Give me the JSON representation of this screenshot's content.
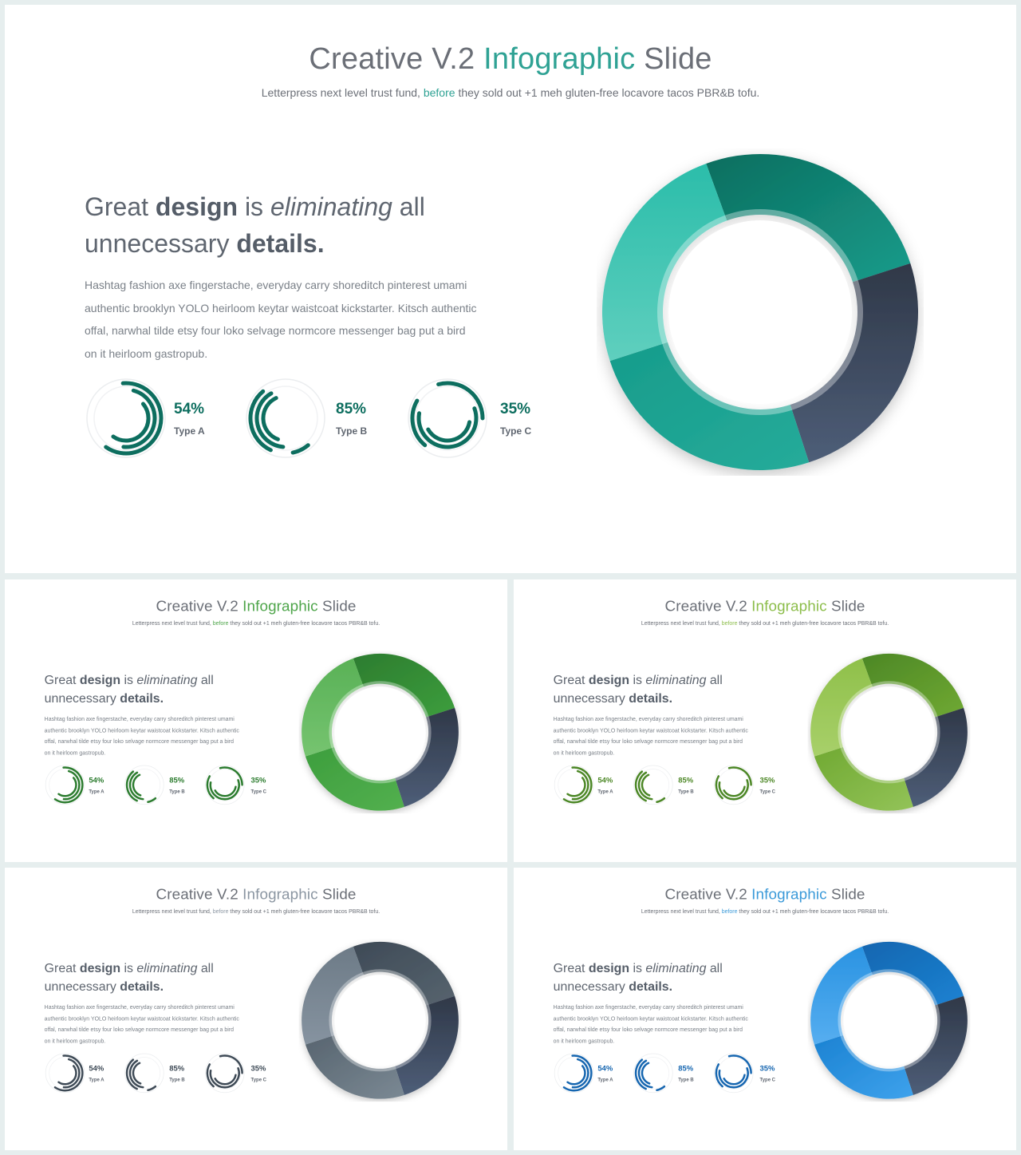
{
  "slide": {
    "title_part1": "Creative V.2",
    "title_accent": "Infographic",
    "title_part3": "Slide",
    "subtitle_part1": "Letterpress next level trust fund,",
    "subtitle_accent": "before",
    "subtitle_part3": "they sold out +1 meh gluten-free locavore tacos PBR&B tofu.",
    "headline": {
      "w1": "Great",
      "w2": "design",
      "w3": "is",
      "w4": "eliminating",
      "w5": "all",
      "w6": "unnecessary",
      "w7": "details",
      "w8": "."
    },
    "body": "Hashtag fashion axe fingerstache, everyday carry shoreditch pinterest umami authentic brooklyn YOLO heirloom keytar waistcoat kickstarter. Kitsch authentic offal, narwhal tilde etsy four loko selvage normcore messenger bag put a bird on it heirloom gastropub.",
    "stats": [
      {
        "value": "54%",
        "label": "Type A",
        "fraction": 0.54
      },
      {
        "value": "85%",
        "label": "Type B",
        "fraction": 0.85
      },
      {
        "value": "35%",
        "label": "Type C",
        "fraction": 0.35
      }
    ]
  },
  "themes": [
    {
      "name": "teal",
      "accent": "#2fa294",
      "dark": "#0d6e5f",
      "mid": "#169c8b",
      "light": "#2bbdaa",
      "pale": "#5fcfbe",
      "bottom": "#26ab9a"
    },
    {
      "name": "green",
      "accent": "#4ea54a",
      "dark": "#2c7c2f",
      "mid": "#3d9e3d",
      "light": "#59b156",
      "pale": "#76c470",
      "bottom": "#53b04f"
    },
    {
      "name": "lime",
      "accent": "#8cbd4a",
      "dark": "#4c8726",
      "mid": "#70a932",
      "light": "#8fc04a",
      "pale": "#a8d06a",
      "bottom": "#93c358"
    },
    {
      "name": "slate",
      "accent": "#8b96a2",
      "dark": "#3e4a56",
      "mid": "#57646f",
      "light": "#6d7b87",
      "pale": "#8693a0",
      "bottom": "#7b8994"
    },
    {
      "name": "blue",
      "accent": "#3b9ad9",
      "dark": "#1666b0",
      "mid": "#1b82d2",
      "light": "#2a93e2",
      "pale": "#56aef0",
      "bottom": "#3ea2ec"
    }
  ],
  "navy_dark": "#2f3848",
  "navy_light": "#4e5e78"
}
